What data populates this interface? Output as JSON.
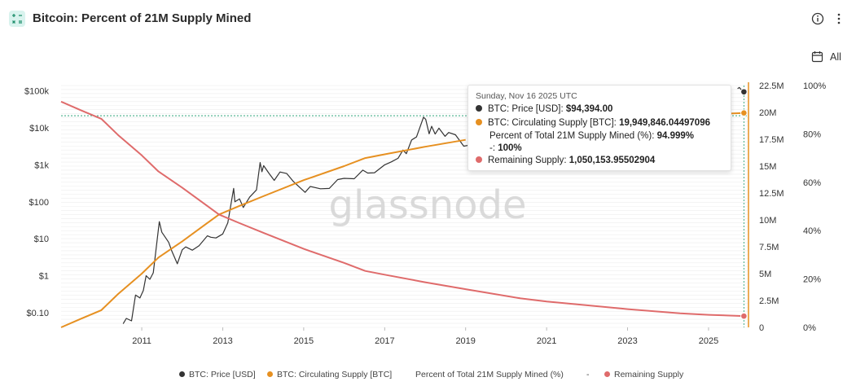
{
  "header": {
    "title": "Bitcoin: Percent of 21M Supply Mined",
    "range_label": "All"
  },
  "watermark": "glassnode",
  "tooltip": {
    "date": "Sunday, Nov 16 2025 UTC",
    "price_label": "BTC: Price [USD]: ",
    "price_value": "$94,394.00",
    "supply_label": "BTC: Circulating Supply [BTC]: ",
    "supply_value": "19,949,846.04497096",
    "percent_label": "Percent of Total 21M Supply Mined (%): ",
    "percent_value": "94.999%",
    "dash_label": "-: ",
    "dash_value": "100%",
    "remaining_label": "Remaining Supply: ",
    "remaining_value": "1,050,153.95502904"
  },
  "legend": [
    {
      "label": "BTC: Price [USD]",
      "color": "#333333"
    },
    {
      "label": "BTC: Circulating Supply [BTC]",
      "color": "#e69021"
    },
    {
      "label": "Percent of Total 21M Supply Mined (%)",
      "color": ""
    },
    {
      "label": "-",
      "color": ""
    },
    {
      "label": "Remaining Supply",
      "color": "#df6b6b"
    }
  ],
  "colors": {
    "price": "#333333",
    "supply": "#e69021",
    "remaining": "#df6b6b",
    "accent": "#2ea37a",
    "icon_bg": "#d9f3ee"
  },
  "chart_data": {
    "type": "line",
    "x_ticks": [
      "2011",
      "2013",
      "2015",
      "2017",
      "2019",
      "2021",
      "2023",
      "2025"
    ],
    "x_range": [
      "2009-01-03",
      "2025-12-20"
    ],
    "y_price_ticks": [
      "$0.10",
      "$1",
      "$10",
      "$100",
      "$1k",
      "$10k",
      "$100k"
    ],
    "y_price_scale": "log",
    "y_price_range": [
      0.04,
      140000
    ],
    "y_supply_ticks": [
      "0",
      "2.5M",
      "5M",
      "7.5M",
      "10M",
      "12.5M",
      "15M",
      "17.5M",
      "20M",
      "22.5M"
    ],
    "y_supply_range": [
      0,
      22500000
    ],
    "y_percent_ticks": [
      "0%",
      "20%",
      "40%",
      "60%",
      "80%",
      "100%"
    ],
    "y_percent_range": [
      0,
      100
    ],
    "reference_line": {
      "series": "-",
      "value": 100
    },
    "series": [
      {
        "name": "BTC: Price [USD]",
        "axis": "price",
        "points": [
          [
            "2010-07-17",
            0.05
          ],
          [
            "2010-08-15",
            0.07
          ],
          [
            "2010-10-01",
            0.06
          ],
          [
            "2010-11-06",
            0.3
          ],
          [
            "2010-12-15",
            0.25
          ],
          [
            "2011-01-15",
            0.4
          ],
          [
            "2011-02-09",
            1.0
          ],
          [
            "2011-03-15",
            0.8
          ],
          [
            "2011-04-15",
            1.2
          ],
          [
            "2011-05-15",
            7
          ],
          [
            "2011-06-08",
            29
          ],
          [
            "2011-07-01",
            15
          ],
          [
            "2011-08-01",
            11
          ],
          [
            "2011-09-01",
            8
          ],
          [
            "2011-10-01",
            4.5
          ],
          [
            "2011-11-18",
            2.1
          ],
          [
            "2012-01-01",
            5
          ],
          [
            "2012-02-01",
            6
          ],
          [
            "2012-04-01",
            4.9
          ],
          [
            "2012-06-01",
            6.5
          ],
          [
            "2012-08-15",
            12
          ],
          [
            "2012-09-15",
            11
          ],
          [
            "2012-11-01",
            10.5
          ],
          [
            "2013-01-01",
            13.5
          ],
          [
            "2013-02-15",
            27
          ],
          [
            "2013-04-09",
            230
          ],
          [
            "2013-04-20",
            100
          ],
          [
            "2013-06-01",
            120
          ],
          [
            "2013-07-05",
            70
          ],
          [
            "2013-09-01",
            135
          ],
          [
            "2013-11-01",
            210
          ],
          [
            "2013-12-04",
            1150
          ],
          [
            "2013-12-20",
            650
          ],
          [
            "2014-01-05",
            950
          ],
          [
            "2014-02-20",
            600
          ],
          [
            "2014-04-10",
            380
          ],
          [
            "2014-06-01",
            640
          ],
          [
            "2014-08-01",
            580
          ],
          [
            "2014-10-01",
            350
          ],
          [
            "2015-01-14",
            180
          ],
          [
            "2015-03-01",
            260
          ],
          [
            "2015-06-01",
            225
          ],
          [
            "2015-08-20",
            230
          ],
          [
            "2015-11-04",
            400
          ],
          [
            "2016-01-01",
            430
          ],
          [
            "2016-04-01",
            420
          ],
          [
            "2016-06-17",
            720
          ],
          [
            "2016-08-01",
            600
          ],
          [
            "2016-10-01",
            610
          ],
          [
            "2017-01-01",
            1000
          ],
          [
            "2017-03-01",
            1200
          ],
          [
            "2017-05-01",
            1500
          ],
          [
            "2017-06-15",
            2500
          ],
          [
            "2017-07-15",
            2000
          ],
          [
            "2017-09-01",
            4700
          ],
          [
            "2017-10-15",
            5700
          ],
          [
            "2017-12-17",
            19500
          ],
          [
            "2018-01-06",
            17000
          ],
          [
            "2018-02-06",
            6900
          ],
          [
            "2018-03-01",
            11000
          ],
          [
            "2018-04-01",
            6800
          ],
          [
            "2018-05-05",
            9800
          ],
          [
            "2018-06-29",
            5900
          ],
          [
            "2018-08-01",
            7500
          ],
          [
            "2018-10-01",
            6500
          ],
          [
            "2018-12-15",
            3200
          ],
          [
            "2019-02-01",
            3400
          ],
          [
            "2019-04-01",
            4100
          ]
        ]
      },
      {
        "name": "BTC: Price [USD]",
        "axis": "price",
        "points": [
          [
            "2025-09-20",
            115000
          ],
          [
            "2025-10-06",
            124000
          ],
          [
            "2025-10-20",
            110000
          ],
          [
            "2025-11-10",
            105000
          ],
          [
            "2025-11-16",
            94394
          ]
        ]
      },
      {
        "name": "BTC: Circulating Supply [BTC]",
        "axis": "supply",
        "points": [
          [
            "2009-01-03",
            0
          ],
          [
            "2009-07-01",
            800000
          ],
          [
            "2010-01-01",
            1600000
          ],
          [
            "2010-06-01",
            3100000
          ],
          [
            "2011-01-01",
            5000000
          ],
          [
            "2011-06-01",
            6500000
          ],
          [
            "2012-01-01",
            8000000
          ],
          [
            "2012-11-28",
            10500000
          ],
          [
            "2013-06-01",
            11300000
          ],
          [
            "2014-01-01",
            12200000
          ],
          [
            "2015-01-01",
            13700000
          ],
          [
            "2016-01-01",
            15000000
          ],
          [
            "2016-07-09",
            15750000
          ],
          [
            "2017-01-01",
            16100000
          ],
          [
            "2018-01-01",
            16800000
          ],
          [
            "2019-01-01",
            17450000
          ]
        ]
      },
      {
        "name": "BTC: Circulating Supply [BTC]",
        "axis": "supply",
        "points": [
          [
            "2024-12-01",
            19790000
          ],
          [
            "2025-06-01",
            19880000
          ],
          [
            "2025-11-16",
            19949846.04497096
          ]
        ]
      },
      {
        "name": "Remaining Supply",
        "axis": "supply",
        "points": [
          [
            "2009-01-03",
            21000000
          ],
          [
            "2009-07-01",
            20200000
          ],
          [
            "2010-01-01",
            19400000
          ],
          [
            "2010-06-01",
            17900000
          ],
          [
            "2011-01-01",
            16000000
          ],
          [
            "2011-06-01",
            14500000
          ],
          [
            "2012-01-01",
            13000000
          ],
          [
            "2012-11-28",
            10500000
          ],
          [
            "2013-06-01",
            9700000
          ],
          [
            "2014-01-01",
            8800000
          ],
          [
            "2015-01-01",
            7300000
          ],
          [
            "2016-01-01",
            6000000
          ],
          [
            "2016-07-09",
            5250000
          ],
          [
            "2017-01-01",
            4900000
          ],
          [
            "2018-01-01",
            4200000
          ],
          [
            "2019-01-01",
            3550000
          ],
          [
            "2020-05-11",
            2700000
          ],
          [
            "2021-01-01",
            2400000
          ],
          [
            "2022-01-01",
            2050000
          ],
          [
            "2023-01-01",
            1700000
          ],
          [
            "2024-04-20",
            1300000
          ],
          [
            "2025-01-01",
            1170000
          ],
          [
            "2025-11-16",
            1050153.95502904
          ]
        ]
      }
    ],
    "grid": true,
    "legend_position": "bottom"
  }
}
